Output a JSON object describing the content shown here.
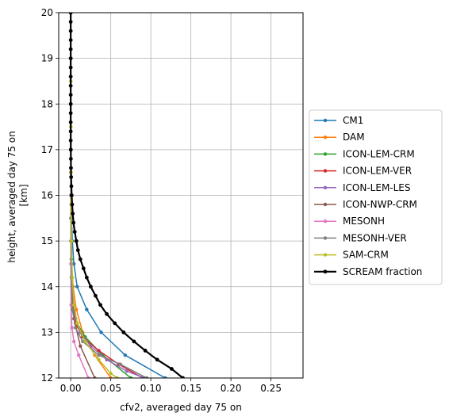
{
  "chart_data": {
    "type": "line",
    "xlabel": "cfv2, averaged day 75 on",
    "ylabel_lines": [
      "height, averaged day 75 on",
      "[km]"
    ],
    "xlim": [
      -0.015,
      0.29
    ],
    "ylim": [
      12,
      20
    ],
    "xticks": [
      0.0,
      0.05,
      0.1,
      0.15,
      0.2,
      0.25
    ],
    "xtick_labels": [
      "0.00",
      "0.05",
      "0.10",
      "0.15",
      "0.20",
      "0.25"
    ],
    "yticks": [
      12,
      13,
      14,
      15,
      16,
      17,
      18,
      19,
      20
    ],
    "ytick_labels": [
      "12",
      "13",
      "14",
      "15",
      "16",
      "17",
      "18",
      "19",
      "20"
    ],
    "grid": true,
    "legend_position": "center-right outside",
    "series": [
      {
        "name": "CM1",
        "color": "#1f77b4",
        "width": 1.5,
        "x": [
          0.118,
          0.068,
          0.038,
          0.02,
          0.008,
          0.004,
          0.002,
          0.001,
          0.0005,
          0.0003,
          0.0002,
          0.0001,
          0.0001,
          0.0
        ],
        "y": [
          12.0,
          12.5,
          13.0,
          13.5,
          14.0,
          14.5,
          15.0,
          15.5,
          16.0,
          16.5,
          17.0,
          18.0,
          19.0,
          20.0
        ]
      },
      {
        "name": "DAM",
        "color": "#ff7f0e",
        "width": 1.5,
        "x": [
          0.05,
          0.03,
          0.015,
          0.007,
          0.003,
          0.001,
          0.0005,
          0.0002,
          0.0001,
          0.0001,
          0.0
        ],
        "y": [
          12.0,
          12.5,
          13.0,
          13.5,
          14.0,
          14.5,
          15.0,
          16.0,
          17.0,
          19.0,
          20.0
        ]
      },
      {
        "name": "ICON-LEM-CRM",
        "color": "#2ca02c",
        "width": 1.5,
        "x": [
          0.075,
          0.04,
          0.018,
          0.008,
          0.004,
          0.002,
          0.0008,
          0.0003,
          0.0001,
          0.0
        ],
        "y": [
          12.0,
          12.5,
          12.9,
          13.2,
          13.6,
          14.0,
          14.6,
          15.5,
          17.0,
          20.0
        ]
      },
      {
        "name": "ICON-LEM-VER",
        "color": "#d62728",
        "width": 1.5,
        "x": [
          0.09,
          0.06,
          0.035,
          0.015,
          0.006,
          0.003,
          0.001,
          0.0004,
          0.0001,
          0.0
        ],
        "y": [
          12.0,
          12.3,
          12.6,
          12.9,
          13.2,
          13.6,
          14.2,
          15.0,
          16.5,
          20.0
        ]
      },
      {
        "name": "ICON-LEM-LES",
        "color": "#9467bd",
        "width": 1.5,
        "x": [
          0.092,
          0.07,
          0.045,
          0.025,
          0.012,
          0.006,
          0.002,
          0.0008,
          0.0002,
          0.0
        ],
        "y": [
          12.0,
          12.15,
          12.4,
          12.7,
          13.0,
          13.3,
          13.8,
          14.5,
          16.0,
          20.0
        ]
      },
      {
        "name": "ICON-NWP-CRM",
        "color": "#8c564b",
        "width": 1.5,
        "x": [
          0.03,
          0.012,
          0.004,
          0.0015,
          0.0005,
          0.0001,
          0.0
        ],
        "y": [
          12.0,
          12.7,
          13.3,
          14.0,
          15.0,
          17.0,
          20.0
        ]
      },
      {
        "name": "MESONH",
        "color": "#e377c2",
        "width": 1.5,
        "x": [
          0.022,
          0.01,
          0.004,
          0.0015,
          0.0005,
          0.0002,
          0.0001,
          0.0
        ],
        "y": [
          12.0,
          12.5,
          12.8,
          13.1,
          13.6,
          14.5,
          16.5,
          20.0
        ]
      },
      {
        "name": "MESONH-VER",
        "color": "#7f7f7f",
        "width": 1.5,
        "x": [
          0.095,
          0.062,
          0.035,
          0.015,
          0.006,
          0.002,
          0.0008,
          0.0002,
          0.0
        ],
        "y": [
          12.0,
          12.3,
          12.5,
          12.8,
          13.1,
          13.5,
          14.2,
          15.5,
          20.0
        ]
      },
      {
        "name": "SAM-CRM",
        "color": "#bcbd22",
        "width": 1.5,
        "x": [
          0.058,
          0.05,
          0.035,
          0.018,
          0.008,
          0.004,
          0.002,
          0.001,
          0.0005,
          0.0003,
          0.0002,
          0.0001,
          0.0
        ],
        "y": [
          12.0,
          12.1,
          12.4,
          12.8,
          13.2,
          13.6,
          14.2,
          15.0,
          15.8,
          16.5,
          17.5,
          18.5,
          20.0
        ]
      },
      {
        "name": "SCREAM fraction",
        "color": "#000000",
        "width": 2.2,
        "x": [
          0.14,
          0.126,
          0.108,
          0.093,
          0.079,
          0.066,
          0.055,
          0.045,
          0.037,
          0.031,
          0.025,
          0.02,
          0.016,
          0.012,
          0.009,
          0.007,
          0.005,
          0.0035,
          0.0025,
          0.0018,
          0.0012,
          0.0008,
          0.0005,
          0.0003,
          0.0002,
          0.0001,
          0.0,
          0.0,
          0.0,
          0.0,
          0.0,
          0.0,
          0.0,
          0.0,
          0.0,
          0.0,
          0.0,
          0.0,
          0.0,
          0.0,
          0.0
        ],
        "y": [
          12.0,
          12.2,
          12.4,
          12.6,
          12.8,
          13.0,
          13.2,
          13.4,
          13.6,
          13.8,
          14.0,
          14.2,
          14.4,
          14.6,
          14.8,
          15.0,
          15.2,
          15.4,
          15.6,
          15.8,
          16.0,
          16.2,
          16.4,
          16.6,
          16.8,
          17.0,
          17.2,
          17.4,
          17.6,
          17.8,
          18.0,
          18.2,
          18.4,
          18.6,
          18.8,
          19.0,
          19.2,
          19.4,
          19.6,
          19.8,
          20.0
        ]
      }
    ]
  }
}
